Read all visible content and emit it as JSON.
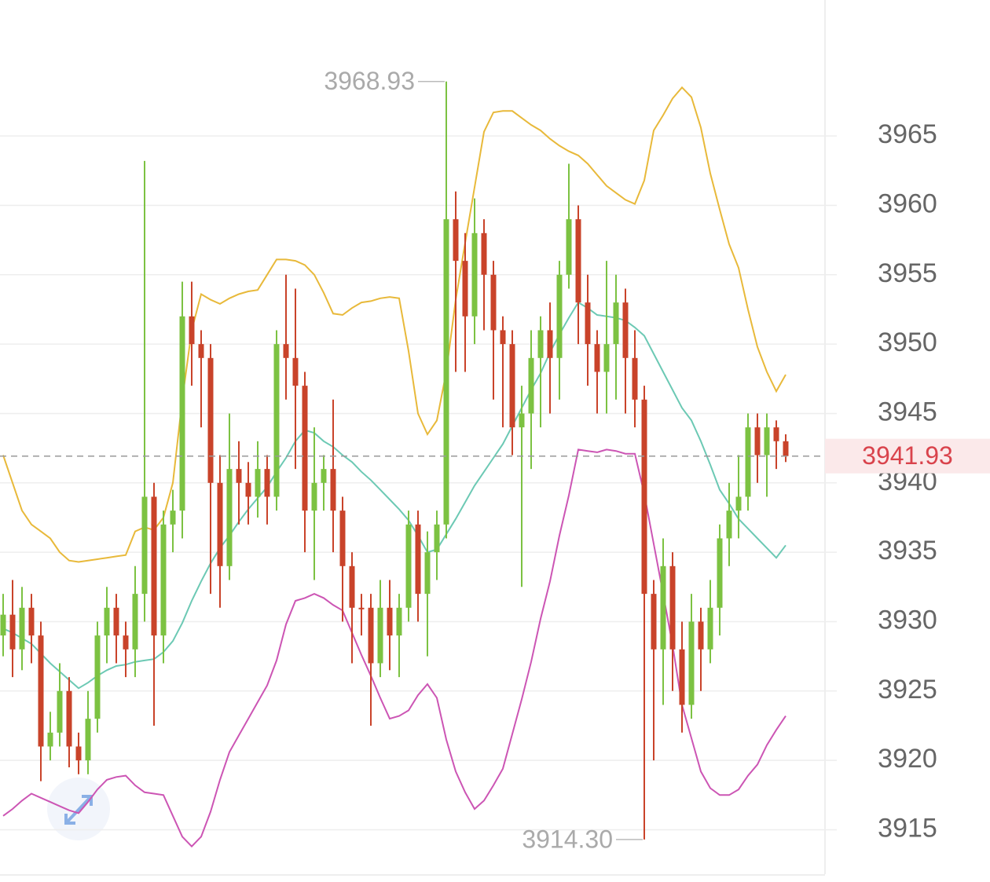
{
  "chart_data": {
    "type": "candlestick",
    "ylim": [
      3911.8,
      3974.8
    ],
    "yticks": [
      3915,
      3920,
      3925,
      3930,
      3935,
      3940,
      3945,
      3950,
      3955,
      3960,
      3965
    ],
    "grid": true,
    "up_color": "#7cc242",
    "down_color": "#c9432a",
    "open": [
      3929,
      3930.5,
      3928,
      3931,
      3929,
      3921,
      3922,
      3925,
      3921,
      3920,
      3923,
      3929,
      3931,
      3929,
      3928,
      3932,
      3939,
      3929,
      3937,
      3938,
      3952,
      3950,
      3949,
      3940,
      3934,
      3941,
      3940,
      3939,
      3941,
      3939,
      3950,
      3949,
      3947,
      3938,
      3940,
      3941,
      3938,
      3934,
      3931,
      3931,
      3927,
      3931,
      3929,
      3931,
      3937,
      3932,
      3935,
      3937,
      3959,
      3956,
      3952,
      3958,
      3955,
      3951,
      3950,
      3944,
      3945,
      3949,
      3951,
      3949,
      3955,
      3959,
      3953,
      3950,
      3948,
      3950,
      3953,
      3949,
      3946,
      3932,
      3928,
      3934,
      3928,
      3924,
      3930,
      3928,
      3931,
      3936,
      3938,
      3939,
      3944,
      3942,
      3944,
      3943
    ],
    "high": [
      3932,
      3933,
      3932.5,
      3932,
      3930,
      3923.5,
      3927,
      3926,
      3922,
      3925,
      3930,
      3932.5,
      3932,
      3930,
      3934,
      3963.2,
      3940,
      3938,
      3939.5,
      3954.5,
      3954.5,
      3951,
      3950,
      3942,
      3945,
      3943,
      3941.5,
      3943,
      3942,
      3951,
      3955,
      3954,
      3948,
      3944,
      3942,
      3946,
      3939,
      3935,
      3932,
      3932,
      3933,
      3933,
      3932,
      3938,
      3938,
      3936.5,
      3938,
      3968.93,
      3961,
      3958,
      3960.5,
      3959,
      3956,
      3952,
      3951,
      3947,
      3951,
      3952,
      3953,
      3956,
      3963,
      3960,
      3955,
      3951,
      3956,
      3955,
      3954,
      3951,
      3947,
      3933,
      3936,
      3935,
      3930,
      3932,
      3931,
      3933,
      3937,
      3940,
      3942,
      3945,
      3945,
      3945,
      3944.5,
      3943.5
    ],
    "low": [
      3927.5,
      3926,
      3926.5,
      3927,
      3918.5,
      3920,
      3921,
      3919.5,
      3919,
      3919,
      3922,
      3927,
      3927,
      3926,
      3926,
      3930,
      3922.5,
      3927,
      3935,
      3936,
      3947,
      3944,
      3932,
      3931,
      3933,
      3937,
      3937,
      3937.5,
      3937,
      3938,
      3946,
      3941,
      3935,
      3933,
      3938,
      3935,
      3930,
      3927,
      3929,
      3922.5,
      3926,
      3926.5,
      3926,
      3930,
      3930,
      3927.5,
      3933,
      3936,
      3948,
      3948,
      3950,
      3951,
      3946,
      3944,
      3942,
      3932.5,
      3941,
      3944,
      3945,
      3946,
      3954,
      3950,
      3947,
      3945,
      3945,
      3946,
      3945,
      3944,
      3914.3,
      3920,
      3924,
      3925,
      3922,
      3923,
      3925,
      3927,
      3929,
      3934,
      3936,
      3938,
      3940,
      3939,
      3941,
      3941.5
    ],
    "close": [
      3930.5,
      3928,
      3931,
      3929,
      3921,
      3922,
      3925,
      3921,
      3920,
      3923,
      3929,
      3931,
      3929,
      3928,
      3932,
      3939,
      3929,
      3937,
      3938,
      3952,
      3950,
      3949,
      3940,
      3934,
      3941,
      3940,
      3939,
      3941,
      3939,
      3950,
      3949,
      3947,
      3938,
      3940,
      3941,
      3938,
      3934,
      3931,
      3931,
      3927,
      3931,
      3929,
      3931,
      3937,
      3932,
      3935,
      3937,
      3959,
      3956,
      3952,
      3958,
      3955,
      3951,
      3950,
      3944,
      3945,
      3949,
      3951,
      3949,
      3955,
      3959,
      3953,
      3950,
      3948,
      3950,
      3953,
      3949,
      3946,
      3932,
      3928,
      3934,
      3928,
      3924,
      3930,
      3928,
      3931,
      3936,
      3938,
      3939,
      3944,
      3942,
      3944,
      3943,
      3941.93
    ],
    "lines": [
      {
        "color": "#e8b93a",
        "values": [
          3942,
          3940,
          3938,
          3937,
          3936.5,
          3936,
          3935,
          3934.4,
          3934.3,
          3934.4,
          3934.5,
          3934.6,
          3934.7,
          3934.8,
          3936.5,
          3936.8,
          3936.6,
          3937.5,
          3940,
          3946,
          3951,
          3953.6,
          3953.2,
          3952.9,
          3953.3,
          3953.6,
          3953.8,
          3953.9,
          3955,
          3956.1,
          3956.1,
          3956,
          3955.7,
          3955,
          3953.7,
          3952.2,
          3952.1,
          3952.6,
          3953,
          3953.1,
          3953.3,
          3953.4,
          3953.3,
          3949.5,
          3945,
          3943.5,
          3944.5,
          3948,
          3953.2,
          3957.3,
          3961.3,
          3965.3,
          3966.7,
          3966.8,
          3966.8,
          3966.3,
          3965.8,
          3965.4,
          3964.8,
          3964.3,
          3963.9,
          3963.6,
          3963,
          3962.2,
          3961.4,
          3960.9,
          3960.4,
          3960.1,
          3961.8,
          3965.4,
          3966.5,
          3967.7,
          3968.5,
          3967.8,
          3965.6,
          3962.3,
          3959.7,
          3957.2,
          3955.5,
          3952.5,
          3949.8,
          3948,
          3946.6,
          3947.8
        ]
      },
      {
        "color": "#6cc9b4",
        "values": [
          3929.5,
          3929.2,
          3928.8,
          3928.4,
          3927.7,
          3927,
          3926.4,
          3925.8,
          3925.2,
          3925.6,
          3926.1,
          3926.5,
          3926.8,
          3926.9,
          3927.1,
          3927.2,
          3927.3,
          3927.8,
          3928.6,
          3929.9,
          3931.5,
          3932.9,
          3934.2,
          3935.3,
          3936.2,
          3937.2,
          3938.1,
          3938.9,
          3939.7,
          3940.8,
          3941.8,
          3943,
          3943.8,
          3943.6,
          3943,
          3942.6,
          3942,
          3941.5,
          3940.8,
          3940.2,
          3939.5,
          3938.8,
          3938.1,
          3937.3,
          3936.2,
          3935,
          3935.2,
          3936.3,
          3937.4,
          3938.6,
          3939.8,
          3940.8,
          3941.8,
          3942.8,
          3944.1,
          3945.4,
          3946.7,
          3947.9,
          3949.4,
          3950.7,
          3951.9,
          3953,
          3952.6,
          3952.1,
          3952,
          3951.9,
          3951.7,
          3951.2,
          3950.6,
          3949.3,
          3948,
          3946.7,
          3945.4,
          3944.5,
          3943,
          3941.3,
          3939.5,
          3938.5,
          3937.4,
          3936.7,
          3936,
          3935.3,
          3934.6,
          3935.5
        ]
      },
      {
        "color": "#cc55b4",
        "values": [
          3916,
          3916.5,
          3917.1,
          3917.6,
          3917.3,
          3917,
          3916.7,
          3916.4,
          3916.2,
          3917,
          3917.9,
          3918.6,
          3918.8,
          3918.9,
          3918.2,
          3917.7,
          3917.6,
          3917.5,
          3916,
          3914.5,
          3913.8,
          3914.5,
          3916.3,
          3918.6,
          3920.6,
          3921.8,
          3923,
          3924.2,
          3925.4,
          3927.2,
          3929.8,
          3931.5,
          3931.7,
          3932,
          3931.7,
          3931.2,
          3930.8,
          3929.2,
          3927.6,
          3926.1,
          3924.5,
          3923,
          3923.2,
          3923.6,
          3924.7,
          3925.5,
          3924.5,
          3921.5,
          3919.2,
          3917.7,
          3916.5,
          3917.1,
          3918.2,
          3919.4,
          3921.9,
          3924.4,
          3927.1,
          3930.2,
          3932.9,
          3936.2,
          3939.1,
          3942.4,
          3942.3,
          3942.2,
          3942.4,
          3942.3,
          3942.1,
          3942.1,
          3939.2,
          3935.6,
          3932,
          3928.3,
          3924,
          3921.6,
          3919.2,
          3918,
          3917.5,
          3917.5,
          3917.9,
          3918.9,
          3919.7,
          3921.1,
          3922.2,
          3923.2
        ]
      }
    ],
    "last_price": 3941.93,
    "annotations": [
      {
        "value": 3968.93,
        "label": "3968.93"
      },
      {
        "value": 3914.3,
        "label": "3914.30"
      }
    ]
  }
}
